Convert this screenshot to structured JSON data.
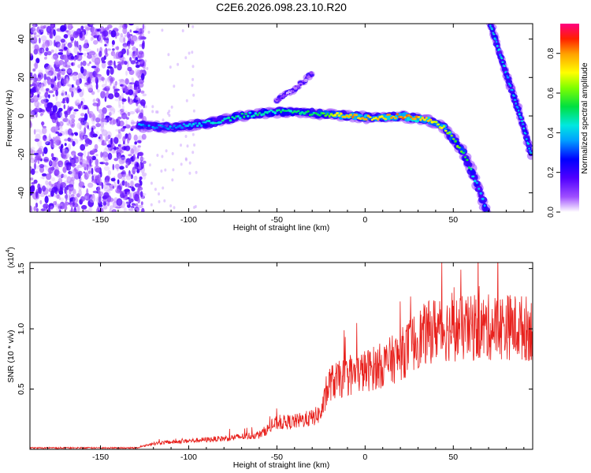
{
  "title": "C2E6.2026.098.23.10.R20",
  "chart_data": [
    {
      "type": "heatmap",
      "title": "C2E6.2026.098.23.10.R20",
      "xlabel": "Height of straight line (km)",
      "ylabel": "Frequency (Hz)",
      "xlim": [
        -190,
        95
      ],
      "ylim": [
        -50,
        48
      ],
      "xticks": [
        -150,
        -100,
        -50,
        0,
        50
      ],
      "yticks": [
        -40,
        -20,
        0,
        20,
        40
      ],
      "colorbar": {
        "label": "Normalized spectral amplitude",
        "range": [
          0.0,
          0.95
        ],
        "ticks": [
          0.0,
          0.2,
          0.4,
          0.6,
          0.8
        ],
        "tick_labels": [
          "0.0",
          "0.2",
          "0.4",
          "0.6",
          "0.8"
        ]
      },
      "features": {
        "noise_region_x": [
          -190,
          -125
        ],
        "main_trace": [
          {
            "x": -128,
            "y": -5,
            "amp": 0.35
          },
          {
            "x": -115,
            "y": -6,
            "amp": 0.35
          },
          {
            "x": -100,
            "y": -5,
            "amp": 0.4
          },
          {
            "x": -85,
            "y": -3,
            "amp": 0.45
          },
          {
            "x": -70,
            "y": 0,
            "amp": 0.5
          },
          {
            "x": -55,
            "y": 2,
            "amp": 0.5
          },
          {
            "x": -40,
            "y": 2,
            "amp": 0.5
          },
          {
            "x": -25,
            "y": 1,
            "amp": 0.55
          },
          {
            "x": -10,
            "y": 0,
            "amp": 0.85
          },
          {
            "x": 5,
            "y": -1,
            "amp": 0.75
          },
          {
            "x": 20,
            "y": 0,
            "amp": 0.85
          },
          {
            "x": 35,
            "y": -2,
            "amp": 0.8
          },
          {
            "x": 45,
            "y": -6,
            "amp": 0.7
          },
          {
            "x": 55,
            "y": -18,
            "amp": 0.6
          },
          {
            "x": 62,
            "y": -32,
            "amp": 0.45
          },
          {
            "x": 69,
            "y": -50,
            "amp": 0.4
          }
        ],
        "branch_trace": [
          {
            "x": -50,
            "y": 8
          },
          {
            "x": -40,
            "y": 14
          },
          {
            "x": -30,
            "y": 22
          }
        ],
        "diagonal_trace": [
          {
            "x": 71,
            "y": 48
          },
          {
            "x": 80,
            "y": 22
          },
          {
            "x": 88,
            "y": 0
          },
          {
            "x": 94,
            "y": -20
          }
        ]
      }
    },
    {
      "type": "line",
      "xlabel": "Height of straight line (km)",
      "ylabel": "SNR (10 * v/v)",
      "scale_label": "(x10",
      "scale_exp": "4",
      "scale_close": ")",
      "xlim": [
        -190,
        95
      ],
      "ylim": [
        0,
        15500
      ],
      "xticks": [
        -150,
        -100,
        -50,
        0,
        50
      ],
      "yticks": [
        5000,
        10000,
        15000
      ],
      "ytick_labels": [
        "0.5",
        "1.0",
        "1.5"
      ],
      "series": [
        {
          "name": "SNR",
          "color": "#e8201c",
          "envelope": [
            {
              "x": -190,
              "y": 0
            },
            {
              "x": -130,
              "y": 80
            },
            {
              "x": -120,
              "y": 500
            },
            {
              "x": -100,
              "y": 700
            },
            {
              "x": -80,
              "y": 900
            },
            {
              "x": -60,
              "y": 1200
            },
            {
              "x": -50,
              "y": 2200
            },
            {
              "x": -40,
              "y": 2300
            },
            {
              "x": -30,
              "y": 2600
            },
            {
              "x": -25,
              "y": 3000
            },
            {
              "x": -20,
              "y": 5500
            },
            {
              "x": -10,
              "y": 6000
            },
            {
              "x": 0,
              "y": 6500
            },
            {
              "x": 10,
              "y": 7000
            },
            {
              "x": 20,
              "y": 7800
            },
            {
              "x": 25,
              "y": 8500
            },
            {
              "x": 30,
              "y": 9200
            },
            {
              "x": 40,
              "y": 10000
            },
            {
              "x": 60,
              "y": 10000
            },
            {
              "x": 80,
              "y": 10200
            },
            {
              "x": 95,
              "y": 10000
            }
          ]
        }
      ]
    }
  ]
}
